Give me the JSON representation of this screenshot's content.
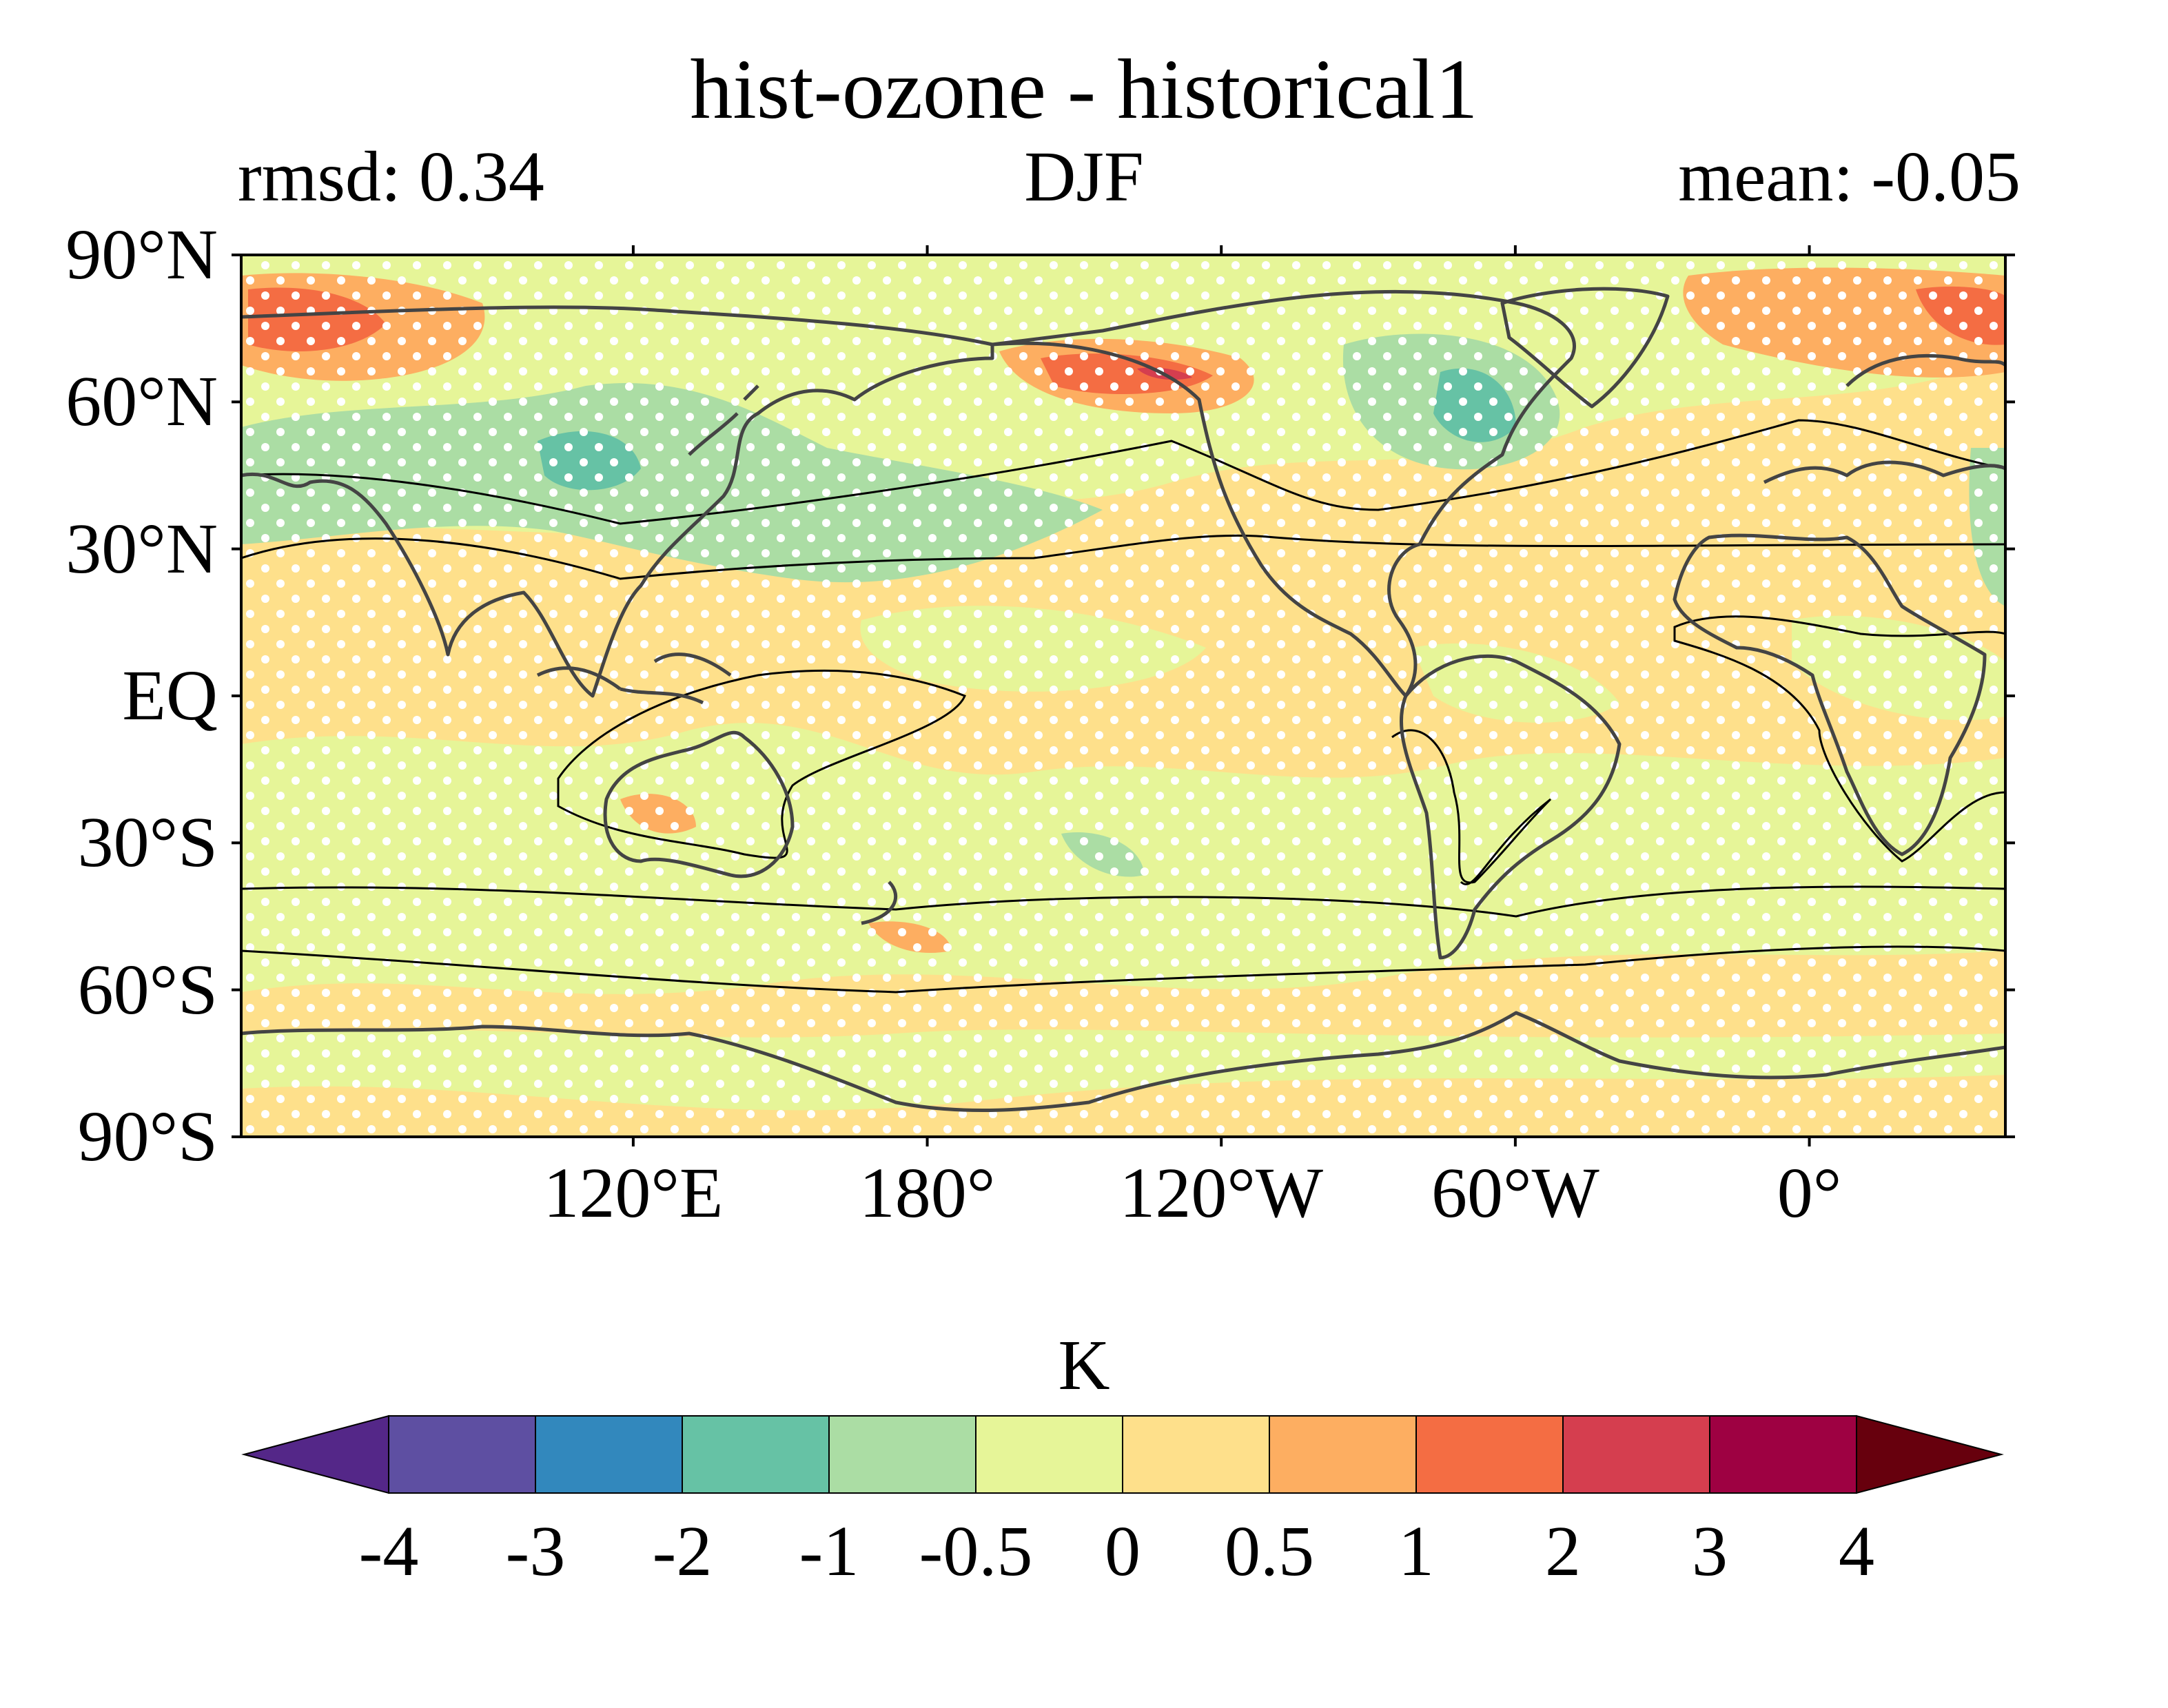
{
  "header": {
    "title": "hist-ozone - historical1",
    "rmsd": "rmsd: 0.34",
    "season": "DJF",
    "mean": "mean: -0.05"
  },
  "axes": {
    "lat_labels": [
      "90°N",
      "60°N",
      "30°N",
      "EQ",
      "30°S",
      "60°S",
      "90°S"
    ],
    "lat_values": [
      90,
      60,
      30,
      0,
      -30,
      -60,
      -90
    ],
    "lon_labels": [
      "120°E",
      "180°",
      "120°W",
      "60°W",
      "0°"
    ],
    "lon_values": [
      120,
      180,
      240,
      300,
      360
    ],
    "lon_range": [
      40,
      400
    ],
    "lat_range": [
      -90,
      90
    ]
  },
  "colorbar": {
    "unit": "K",
    "ticks": [
      "-4",
      "-3",
      "-2",
      "-1",
      "-0.5",
      "0",
      "0.5",
      "1",
      "2",
      "3",
      "4"
    ],
    "colors": [
      "#5e4fa2",
      "#3288bd",
      "#66c2a5",
      "#abdda4",
      "#e6f598",
      "#fee08b",
      "#fdae61",
      "#f46d43",
      "#d53e4f",
      "#9e0142"
    ],
    "under_color": "#542788",
    "over_color": "#67000d",
    "extend": "both"
  },
  "map": {
    "projection": "PlateCarree",
    "central_longitude": 220,
    "coastline_color": "#444444",
    "contour_color": "#000000",
    "stipple": "white dots indicate significance"
  }
}
